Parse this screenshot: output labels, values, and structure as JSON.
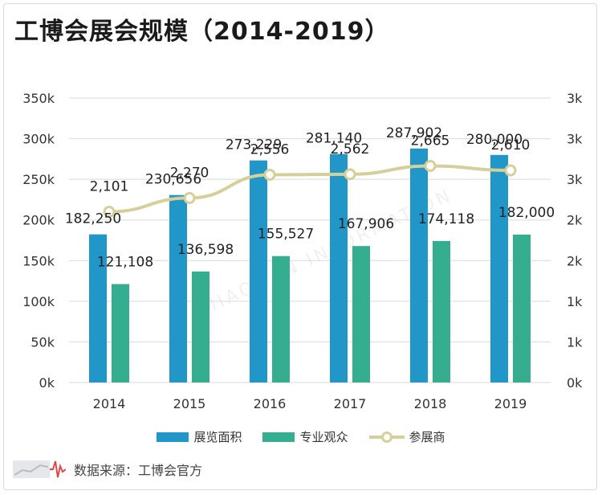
{
  "title": "工博会展会规模（2014-2019）",
  "source": "数据来源：工博会官方",
  "watermark_text": "MIAOJIAN INFORMATION",
  "colors": {
    "exhibition_area": "#2196c9",
    "visitors": "#35ad8f",
    "exhibitors": "#d6cf99",
    "grid": "#d9d9d9",
    "axis_text": "#333333"
  },
  "chart_data": {
    "type": "bar+line",
    "categories": [
      "2014",
      "2015",
      "2016",
      "2017",
      "2018",
      "2019"
    ],
    "series": [
      {
        "name": "展览面积",
        "type": "bar",
        "axis": "left",
        "values": [
          182250,
          230656,
          273229,
          281140,
          287902,
          280000
        ],
        "labels": [
          "182,250",
          "230,656",
          "273,229",
          "281,140",
          "287,902",
          "280,000"
        ]
      },
      {
        "name": "专业观众",
        "type": "bar",
        "axis": "left",
        "values": [
          121108,
          136598,
          155527,
          167906,
          174118,
          182000
        ],
        "labels": [
          "121,108",
          "136,598",
          "155,527",
          "167,906",
          "174,118",
          "182,000"
        ]
      },
      {
        "name": "参展商",
        "type": "line",
        "axis": "right",
        "values": [
          2101,
          2270,
          2556,
          2562,
          2665,
          2610
        ],
        "labels": [
          "2,101",
          "2,270",
          "2,556",
          "2,562",
          "2,665",
          "2,610"
        ]
      }
    ],
    "y_left": {
      "min": 0,
      "max": 350000,
      "ticks": [
        "0k",
        "50k",
        "100k",
        "150k",
        "200k",
        "250k",
        "300k",
        "350k"
      ]
    },
    "y_right": {
      "min": 0,
      "max": 3500,
      "ticks": [
        "0k",
        "1k",
        "1k",
        "2k",
        "2k",
        "3k",
        "3k",
        "3k"
      ]
    },
    "legend_position": "bottom",
    "grid": true
  }
}
